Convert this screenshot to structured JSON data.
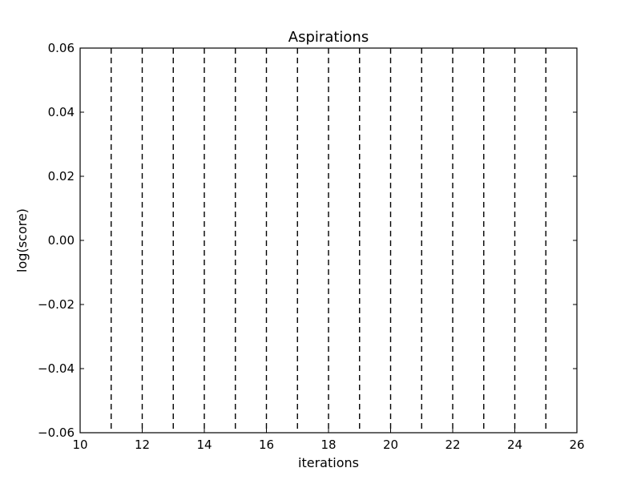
{
  "chart_data": {
    "type": "line",
    "title": "Aspirations",
    "xlabel": "iterations",
    "ylabel": "log(score)",
    "xlim": [
      10,
      26
    ],
    "ylim": [
      -0.06,
      0.06
    ],
    "xticks": [
      10,
      12,
      14,
      16,
      18,
      20,
      22,
      24,
      26
    ],
    "xtick_labels": [
      "10",
      "12",
      "14",
      "16",
      "18",
      "20",
      "22",
      "24",
      "26"
    ],
    "yticks": [
      0.06,
      0.04,
      0.02,
      0.0,
      -0.02,
      -0.04,
      -0.06
    ],
    "ytick_labels": [
      "0.06",
      "0.04",
      "0.02",
      "0.00",
      "−0.02",
      "−0.04",
      "−0.06"
    ],
    "vlines": {
      "x": [
        11,
        12,
        13,
        14,
        15,
        16,
        17,
        18,
        19,
        20,
        21,
        22,
        23,
        24,
        25
      ],
      "style": "dashed",
      "color": "#000000"
    },
    "series": [],
    "grid": false
  }
}
